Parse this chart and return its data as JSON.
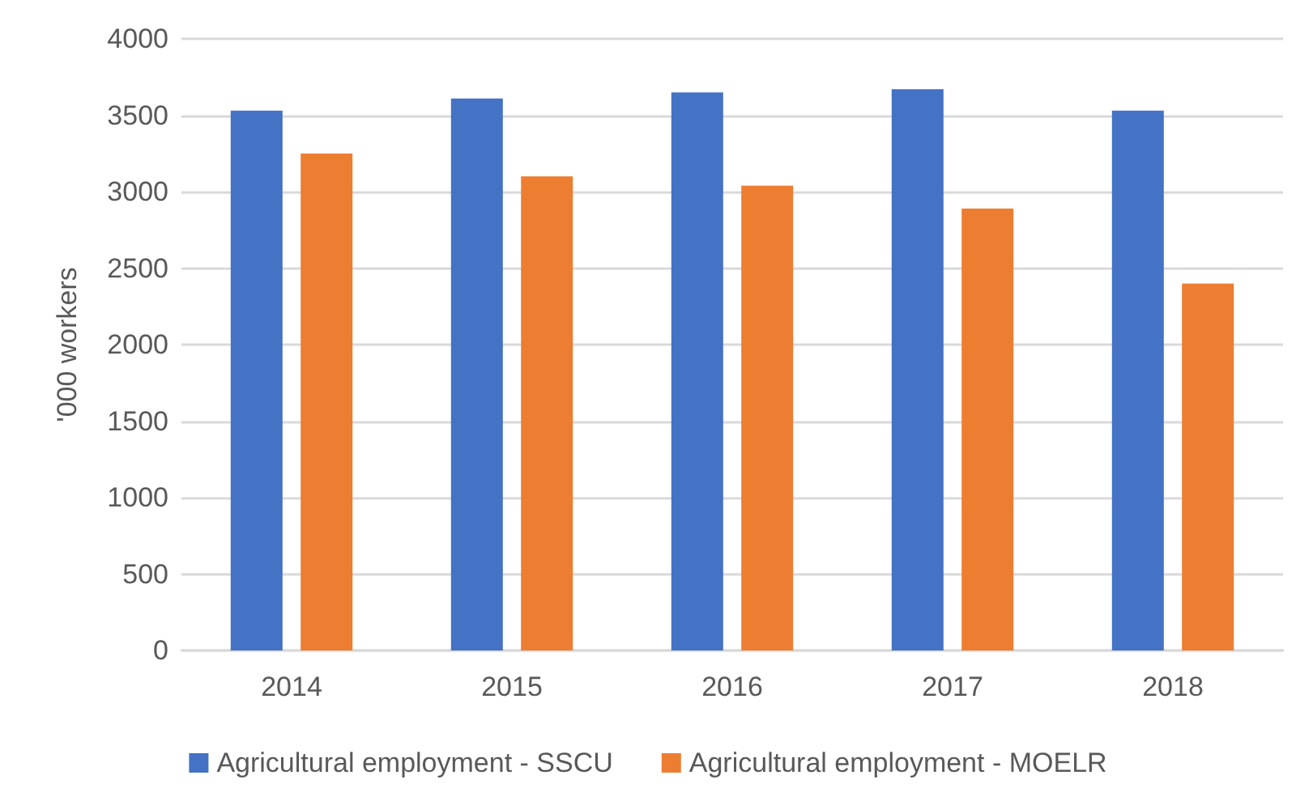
{
  "chart_data": {
    "type": "bar",
    "ylabel": "'000 workers",
    "categories": [
      "2014",
      "2015",
      "2016",
      "2017",
      "2018"
    ],
    "series": [
      {
        "name": "Agricultural employment - SSCU",
        "color": "#4472c4",
        "values": [
          3530,
          3610,
          3650,
          3670,
          3530
        ]
      },
      {
        "name": "Agricultural employment - MOELR",
        "color": "#ed7d31",
        "values": [
          3250,
          3100,
          3040,
          2890,
          2400
        ]
      }
    ],
    "ylim": [
      0,
      4000
    ],
    "yticks": [
      0,
      500,
      1000,
      1500,
      2000,
      2500,
      3000,
      3500,
      4000
    ],
    "grid": "y",
    "legend": "bottom"
  }
}
